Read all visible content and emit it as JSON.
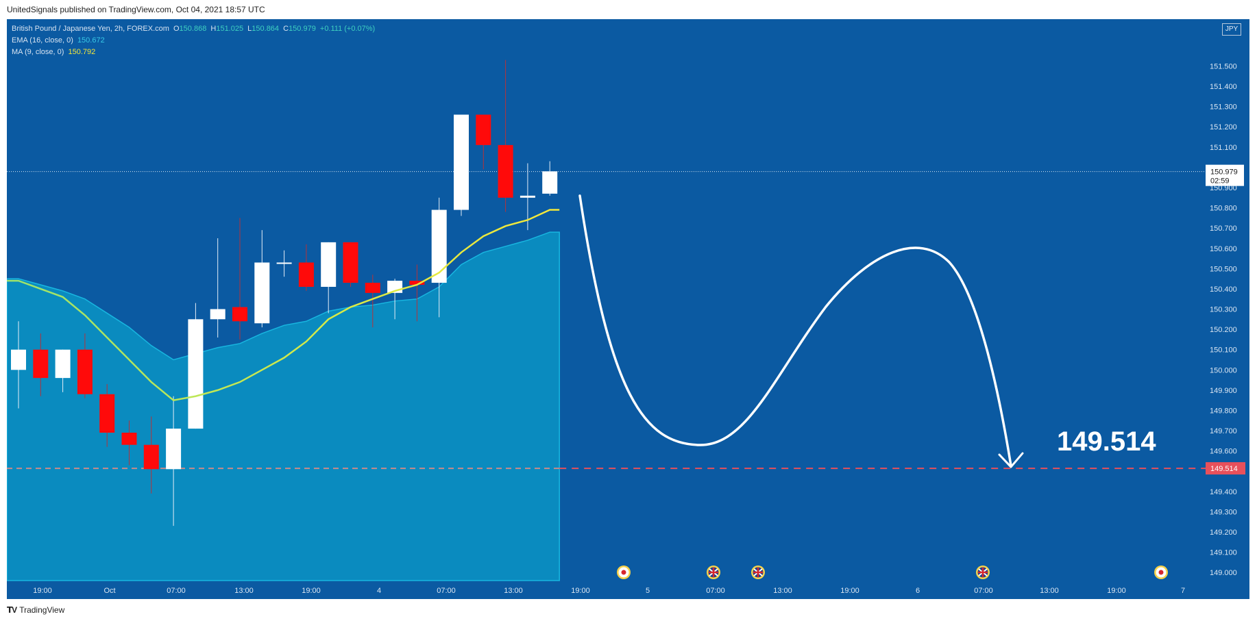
{
  "caption": "UnitedSignals published on TradingView.com, Oct 04, 2021 18:57 UTC",
  "brand": "TradingView",
  "currency": "JPY",
  "legend": {
    "symbol": "British Pound / Japanese Yen, 2h, FOREX.com",
    "o_label": "O",
    "o": "150.868",
    "h_label": "H",
    "h": "151.025",
    "l_label": "L",
    "l": "150.864",
    "c_label": "C",
    "c": "150.979",
    "change": "+0.111 (+0.07%)",
    "ema_label": "EMA (16, close, 0)",
    "ema_value": "150.672",
    "ma_label": "MA (9, close, 0)",
    "ma_value": "150.792"
  },
  "price_tags": {
    "current": "150.979",
    "countdown": "02:59",
    "target": "149.514"
  },
  "target_label": "149.514",
  "colors": {
    "background": "#0b5aa2",
    "up": "#ffffff",
    "down": "#ff0a0a",
    "ema_fill": "#0a8bbf",
    "ma_line": "#f4e73a",
    "target_line": "#e8505b"
  },
  "chart_data": {
    "type": "candlestick",
    "y_axis_ticks": [
      "151.500",
      "151.400",
      "151.300",
      "151.200",
      "151.100",
      "151.000",
      "150.900",
      "150.800",
      "150.700",
      "150.600",
      "150.500",
      "150.400",
      "150.300",
      "150.200",
      "150.100",
      "150.000",
      "149.900",
      "149.800",
      "149.700",
      "149.600",
      "149.500",
      "149.400",
      "149.300",
      "149.200",
      "149.100",
      "149.000"
    ],
    "ylim": [
      148.96,
      151.63
    ],
    "x_axis_ticks": [
      "19:00",
      "Oct",
      "07:00",
      "13:00",
      "19:00",
      "4",
      "07:00",
      "13:00",
      "19:00",
      "5",
      "07:00",
      "13:00",
      "19:00",
      "6",
      "07:00",
      "13:00",
      "19:00",
      "7"
    ],
    "candles": [
      {
        "o": 150.0,
        "h": 150.24,
        "l": 149.81,
        "c": 150.1
      },
      {
        "o": 150.1,
        "h": 150.18,
        "l": 149.87,
        "c": 149.96
      },
      {
        "o": 149.96,
        "h": 150.1,
        "l": 149.89,
        "c": 150.1
      },
      {
        "o": 150.1,
        "h": 150.18,
        "l": 149.86,
        "c": 149.88
      },
      {
        "o": 149.88,
        "h": 149.93,
        "l": 149.62,
        "c": 149.69
      },
      {
        "o": 149.69,
        "h": 149.75,
        "l": 149.53,
        "c": 149.63
      },
      {
        "o": 149.63,
        "h": 149.77,
        "l": 149.39,
        "c": 149.51
      },
      {
        "o": 149.51,
        "h": 149.87,
        "l": 149.23,
        "c": 149.71
      },
      {
        "o": 149.71,
        "h": 150.33,
        "l": 149.71,
        "c": 150.25
      },
      {
        "o": 150.25,
        "h": 150.65,
        "l": 150.16,
        "c": 150.3
      },
      {
        "o": 150.31,
        "h": 150.75,
        "l": 150.15,
        "c": 150.24
      },
      {
        "o": 150.23,
        "h": 150.69,
        "l": 150.21,
        "c": 150.53
      },
      {
        "o": 150.53,
        "h": 150.59,
        "l": 150.46,
        "c": 150.53
      },
      {
        "o": 150.53,
        "h": 150.62,
        "l": 150.39,
        "c": 150.41
      },
      {
        "o": 150.41,
        "h": 150.63,
        "l": 150.28,
        "c": 150.63
      },
      {
        "o": 150.63,
        "h": 150.63,
        "l": 150.41,
        "c": 150.43
      },
      {
        "o": 150.43,
        "h": 150.47,
        "l": 150.21,
        "c": 150.38
      },
      {
        "o": 150.38,
        "h": 150.45,
        "l": 150.25,
        "c": 150.44
      },
      {
        "o": 150.44,
        "h": 150.52,
        "l": 150.24,
        "c": 150.42
      },
      {
        "o": 150.43,
        "h": 150.85,
        "l": 150.26,
        "c": 150.79
      },
      {
        "o": 150.79,
        "h": 151.26,
        "l": 150.76,
        "c": 151.26
      },
      {
        "o": 151.26,
        "h": 151.26,
        "l": 150.99,
        "c": 151.11
      },
      {
        "o": 151.11,
        "h": 151.53,
        "l": 150.78,
        "c": 150.85
      },
      {
        "o": 150.85,
        "h": 151.02,
        "l": 150.69,
        "c": 150.86
      },
      {
        "o": 150.87,
        "h": 151.03,
        "l": 150.86,
        "c": 150.98
      }
    ],
    "ema_16": [
      150.45,
      150.42,
      150.39,
      150.35,
      150.28,
      150.21,
      150.12,
      150.05,
      150.08,
      150.11,
      150.13,
      150.18,
      150.22,
      150.24,
      150.29,
      150.31,
      150.32,
      150.34,
      150.35,
      150.41,
      150.52,
      150.58,
      150.61,
      150.64,
      150.68
    ],
    "ma_9": [
      150.44,
      150.4,
      150.36,
      150.27,
      150.16,
      150.05,
      149.94,
      149.85,
      149.87,
      149.9,
      149.94,
      150.0,
      150.06,
      150.14,
      150.25,
      150.31,
      150.35,
      150.39,
      150.42,
      150.48,
      150.58,
      150.66,
      150.71,
      150.74,
      150.79
    ],
    "target_level": 149.514,
    "projection_path_prices": [
      150.86,
      149.7,
      150.58,
      149.514
    ]
  }
}
